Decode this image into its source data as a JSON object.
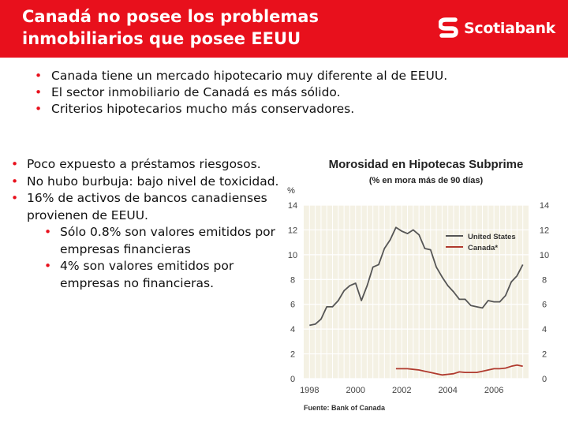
{
  "slide": {
    "title": "Canadá no posee los problemas\ninmobiliarios que posee EEUU",
    "logo_text": "Scotiabank",
    "brand_color": "#e8101c",
    "logo_icon": "scotiabank-s-icon"
  },
  "top_bullets": [
    "Canada tiene un mercado hipotecario muy diferente al de EEUU.",
    "El sector inmobiliario de Canadá es más sólido.",
    "Criterios hipotecarios mucho más conservadores."
  ],
  "left_bullets": [
    "Poco expuesto a préstamos riesgosos.",
    "No hubo burbuja: bajo nivel de toxicidad.",
    "16% de activos de bancos canadienses provienen de EEUU."
  ],
  "left_sub_bullets": [
    "Sólo 0.8% son valores emitidos por empresas financieras",
    "4% son valores emitidos por empresas no financieras."
  ],
  "chart_data": {
    "type": "line",
    "title": "Morosidad en Hipotecas Subprime",
    "subtitle": "(% en mora más de 90 días)",
    "ylabel": "%",
    "source": "Fuente: Bank of Canada",
    "xlim": [
      1997.75,
      2007.5
    ],
    "ylim": [
      0,
      14
    ],
    "x_ticks": [
      1998,
      2000,
      2002,
      2004,
      2006
    ],
    "x_tick_labels": [
      "1998",
      "2000",
      "2002",
      "2004",
      "2006"
    ],
    "y_ticks": [
      0,
      2,
      4,
      6,
      8,
      10,
      12,
      14
    ],
    "y_tick_labels": [
      "0",
      "2",
      "4",
      "6",
      "8",
      "10",
      "12",
      "14"
    ],
    "grid": true,
    "legend_position": "top-right",
    "series": [
      {
        "name": "United States",
        "color": "#555555",
        "x": [
          1998.0,
          1998.25,
          1998.5,
          1998.75,
          1999.0,
          1999.25,
          1999.5,
          1999.75,
          2000.0,
          2000.25,
          2000.5,
          2000.75,
          2001.0,
          2001.25,
          2001.5,
          2001.75,
          2002.0,
          2002.25,
          2002.5,
          2002.75,
          2003.0,
          2003.25,
          2003.5,
          2003.75,
          2004.0,
          2004.25,
          2004.5,
          2004.75,
          2005.0,
          2005.25,
          2005.5,
          2005.75,
          2006.0,
          2006.25,
          2006.5,
          2006.75,
          2007.0
        ],
        "values": [
          4.3,
          4.4,
          4.8,
          5.8,
          5.8,
          6.3,
          7.1,
          7.5,
          7.7,
          6.3,
          7.5,
          9.0,
          9.2,
          10.5,
          11.2,
          12.2,
          11.9,
          11.7,
          12.0,
          11.6,
          10.5,
          10.4,
          9.0,
          8.2,
          7.5,
          7.0,
          6.4,
          6.4,
          5.9,
          5.8,
          5.7,
          6.3,
          6.2,
          6.2,
          6.7,
          7.8,
          8.3
        ],
        "end_point": {
          "x": 2007.25,
          "y": 9.2
        }
      },
      {
        "name": "Canada*",
        "color": "#b03a2e",
        "x": [
          2001.75,
          2002.0,
          2002.25,
          2002.5,
          2002.75,
          2003.0,
          2003.25,
          2003.5,
          2003.75,
          2004.0,
          2004.25,
          2004.5,
          2004.75,
          2005.0,
          2005.25,
          2005.5,
          2005.75,
          2006.0,
          2006.25,
          2006.5,
          2006.75,
          2007.0,
          2007.25
        ],
        "values": [
          0.8,
          0.8,
          0.8,
          0.75,
          0.7,
          0.6,
          0.5,
          0.4,
          0.3,
          0.35,
          0.4,
          0.55,
          0.5,
          0.5,
          0.5,
          0.6,
          0.7,
          0.8,
          0.8,
          0.85,
          1.0,
          1.1,
          1.0
        ]
      }
    ]
  }
}
